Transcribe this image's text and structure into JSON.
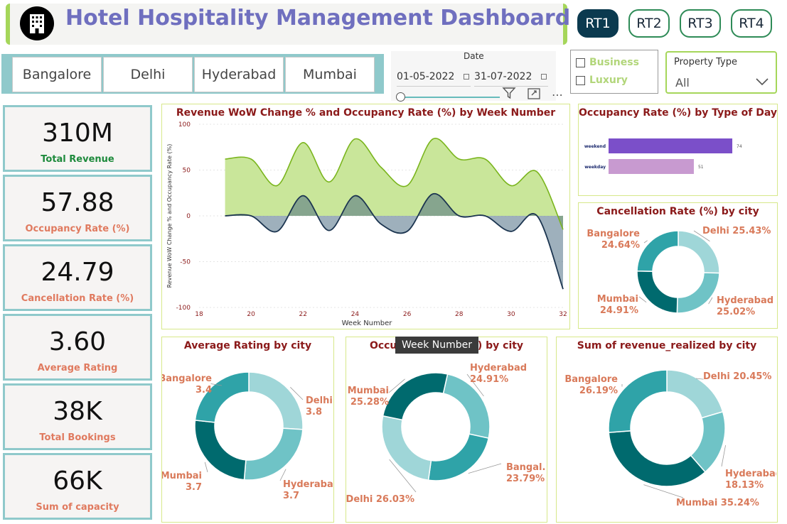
{
  "header": {
    "title": "Hotel Hospitality Management Dashboard",
    "logo_icon": "hotel-building-icon",
    "rt_buttons": [
      {
        "label": "RT1",
        "active": true
      },
      {
        "label": "RT2",
        "active": false
      },
      {
        "label": "RT3",
        "active": false
      },
      {
        "label": "RT4",
        "active": false
      }
    ]
  },
  "cities": [
    "Bangalore",
    "Delhi",
    "Hyderabad",
    "Mumbai"
  ],
  "date_filter": {
    "label": "Date",
    "start": "01-05-2022",
    "end": "31-07-2022"
  },
  "property_class": [
    "Business",
    "Luxury"
  ],
  "property_type": {
    "label": "Property Type",
    "value": "All"
  },
  "kpis": [
    {
      "value": "310M",
      "label": "Total Revenue",
      "color": "#1e8a3c"
    },
    {
      "value": "57.88",
      "label": "Occupancy Rate (%)",
      "color": "#e07a5f"
    },
    {
      "value": "24.79",
      "label": "Cancellation Rate (%)",
      "color": "#e07a5f"
    },
    {
      "value": "3.60",
      "label": "Average Rating",
      "color": "#e07a5f"
    },
    {
      "value": "38K",
      "label": "Total Bookings",
      "color": "#e07a5f"
    },
    {
      "value": "66K",
      "label": "Sum of capacity",
      "color": "#e07a5f"
    }
  ],
  "tooltip": "Week Number",
  "colors": {
    "teal_dark": "#006a6e",
    "teal_mid": "#2fa3a8",
    "teal_light": "#6fc3c6",
    "teal_pale": "#9fd6d8",
    "green_area": "#c9e69a",
    "green_line": "#7ab51d",
    "navy_line": "#1c3550",
    "label_color": "#d97a5a"
  },
  "chart_data": [
    {
      "type": "area",
      "title": "Revenue WoW Change % and Occupancy Rate (%) by Week Number",
      "xlabel": "Week Number",
      "ylabel": "Revenue WoW Change % and Occupancy Rate (%)",
      "xlim": [
        18,
        32
      ],
      "ylim": [
        -100,
        100
      ],
      "x_ticks": [
        18,
        20,
        22,
        24,
        26,
        28,
        30,
        32
      ],
      "y_ticks": [
        100,
        50,
        0,
        -50,
        -100
      ],
      "x": [
        19,
        20,
        21,
        22,
        23,
        24,
        25,
        26,
        27,
        28,
        29,
        30,
        31,
        32
      ],
      "series": [
        {
          "name": "Occupancy Rate (%)",
          "values": [
            62,
            62,
            33,
            80,
            37,
            84,
            53,
            33,
            84,
            62,
            62,
            33,
            48,
            -15
          ]
        },
        {
          "name": "Revenue WoW Change %",
          "values": [
            0,
            0,
            -17,
            22,
            -16,
            22,
            -9,
            -17,
            24,
            0,
            0,
            -17,
            0,
            -80
          ]
        }
      ]
    },
    {
      "type": "bar",
      "title": "Occupancy Rate (%) by Type of Day",
      "categories": [
        "weekend",
        "weekday"
      ],
      "values": [
        74,
        51
      ],
      "xlim": [
        0,
        100
      ],
      "colors": [
        "#7b4fc9",
        "#c89ad0"
      ]
    },
    {
      "type": "pie",
      "title": "Cancellation Rate (%) by city",
      "labels": [
        "Delhi",
        "Hyderabad",
        "Mumbai",
        "Bangalore"
      ],
      "values": [
        25.43,
        25.02,
        24.91,
        24.64
      ],
      "value_labels": [
        "25.43%",
        "25.02%",
        "24.91%",
        "24.64%"
      ]
    },
    {
      "type": "pie",
      "title": "Average Rating by city",
      "labels": [
        "Delhi",
        "Hyderabad",
        "Mumbai",
        "Bangalore"
      ],
      "values": [
        3.8,
        3.7,
        3.7,
        3.4
      ],
      "value_labels": [
        "3.8",
        "3.7",
        "3.7",
        "3.4"
      ]
    },
    {
      "type": "pie",
      "title": "Occupancy Rate (%) by city",
      "labels": [
        "Hyderabad",
        "Bangal...",
        "Delhi",
        "Mumbai"
      ],
      "values": [
        24.91,
        23.79,
        26.03,
        25.28
      ],
      "value_labels": [
        "24.91%",
        "23.79%",
        "26.03%",
        "25.28%"
      ]
    },
    {
      "type": "pie",
      "title": "Sum of revenue_realized by city",
      "labels": [
        "Delhi",
        "Hyderabad",
        "Mumbai",
        "Bangalore"
      ],
      "values": [
        20.45,
        18.13,
        35.24,
        26.19
      ],
      "value_labels": [
        "20.45%",
        "18.13%",
        "35.24%",
        "26.19%"
      ]
    }
  ]
}
